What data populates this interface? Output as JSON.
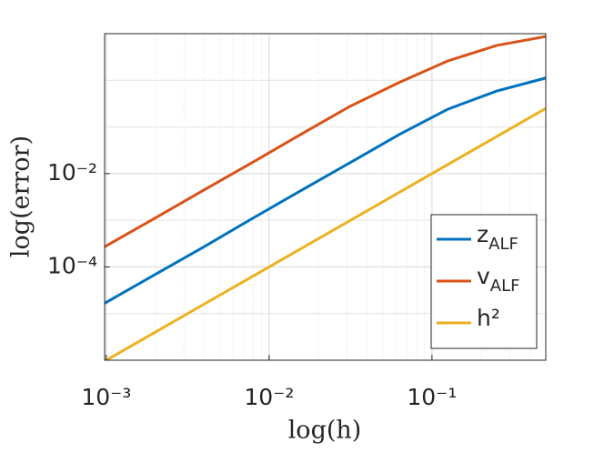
{
  "chart_data": {
    "type": "line",
    "x_label": "log(h)",
    "y_label": "log(error)",
    "x_log": true,
    "y_log": true,
    "grid": true,
    "legend": "southeast",
    "x": [
      0.0009765625,
      0.001953125,
      0.00390625,
      0.0078125,
      0.015625,
      0.03125,
      0.0625,
      0.125,
      0.25,
      0.5
    ],
    "series": [
      {
        "name": "zALF",
        "color": "#0072BD",
        "values": [
          1.66e-05,
          6.6e-05,
          0.00026,
          0.00107,
          0.0043,
          0.017,
          0.068,
          0.24,
          0.59,
          1.12
        ]
      },
      {
        "name": "vALF",
        "color": "#D95319",
        "values": [
          0.00027,
          0.00107,
          0.0043,
          0.017,
          0.069,
          0.275,
          0.89,
          2.6,
          5.6,
          8.7
        ]
      },
      {
        "name": "h²",
        "color": "#EDB120",
        "values": [
          9.54e-07,
          3.81e-06,
          1.53e-05,
          6.1e-05,
          0.000244,
          0.000977,
          0.00391,
          0.0156,
          0.0625,
          0.25
        ]
      }
    ],
    "xlim": [
      0.0009765625,
      0.5
    ],
    "ylim": [
      1e-06,
      10
    ],
    "xticks": [
      {
        "value": 0.001,
        "label": "10⁻³"
      },
      {
        "value": 0.01,
        "label": "10⁻²"
      },
      {
        "value": 0.1,
        "label": "10⁻¹"
      }
    ],
    "yticks": [
      {
        "value": 0.0001,
        "label": "10⁻⁴"
      },
      {
        "value": 0.01,
        "label": "10⁻²"
      }
    ]
  }
}
